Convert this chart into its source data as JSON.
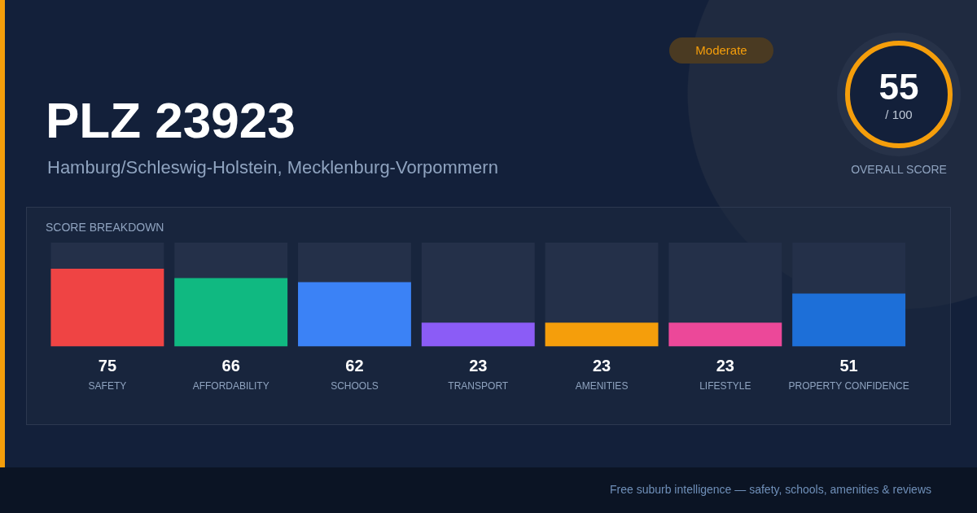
{
  "chart_data": {
    "type": "bar",
    "title": "PLZ 23923",
    "subtitle": "Hamburg/Schleswig-Holstein, Mecklenburg-Vorpommern",
    "categories": [
      "SAFETY",
      "AFFORDABILITY",
      "SCHOOLS",
      "TRANSPORT",
      "AMENITIES",
      "LIFESTYLE",
      "PROPERTY CONFIDENCE"
    ],
    "values": [
      75,
      66,
      62,
      23,
      23,
      23,
      51
    ],
    "colors": [
      "#ef4444",
      "#10b981",
      "#3b82f6",
      "#8b5cf6",
      "#f59e0b",
      "#ec4899",
      "#1d6fd8"
    ],
    "ylim": [
      0,
      100
    ],
    "tick_labels": "x",
    "data_labels": true,
    "grid": false,
    "annotations": [
      "SCORE BREAKDOWN",
      "Moderate",
      "55",
      "/ 100",
      "OVERALL SCORE",
      "Free suburb intelligence — safety, schools, amenities & reviews"
    ]
  }
}
